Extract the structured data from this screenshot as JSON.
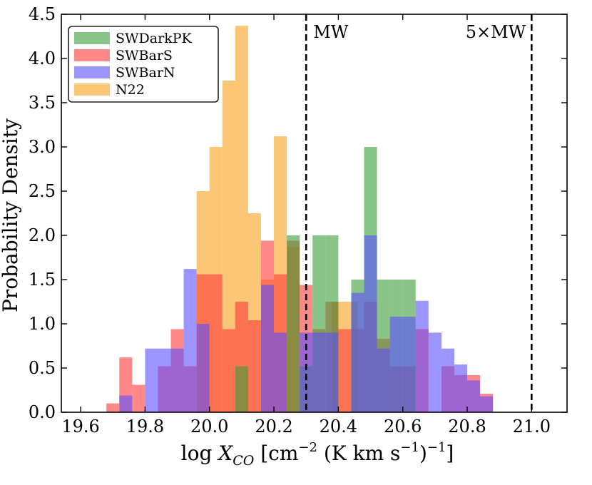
{
  "chart_data": {
    "type": "histogram",
    "title": "",
    "xlabel": "log X_CO [cm^-2 (K km s^-1)^-1]",
    "xlabel_parts": {
      "prefix": "log ",
      "var": "X",
      "sub": "CO",
      "unit_open": " [cm",
      "sup1": "−2",
      "unit_mid": " (K km s",
      "sup2": "−1",
      "unit_close": ")",
      "sup3": "−1",
      "end": "]"
    },
    "ylabel": "Probability Density",
    "xlim": [
      19.54,
      21.11
    ],
    "ylim": [
      0.0,
      4.5
    ],
    "xticks": [
      "19.6",
      "19.8",
      "20.0",
      "20.2",
      "20.4",
      "20.6",
      "20.8",
      "21.0"
    ],
    "yticks": [
      "0.0",
      "0.5",
      "1.0",
      "1.5",
      "2.0",
      "2.5",
      "3.0",
      "3.5",
      "4.0",
      "4.5"
    ],
    "legend_position": "upper-left",
    "vlines": [
      {
        "x": 20.3,
        "label": "MW",
        "style": "dashed",
        "color": "#000000"
      },
      {
        "x": 21.0,
        "label": "5×MW",
        "style": "dashed",
        "color": "#000000"
      }
    ],
    "series": [
      {
        "name": "N22",
        "color": "#f9a21a",
        "opacity": 0.6,
        "bins": [
          {
            "x0": 19.96,
            "x1": 20.0,
            "y": 2.5
          },
          {
            "x0": 20.0,
            "x1": 20.04,
            "y": 3.0
          },
          {
            "x0": 20.04,
            "x1": 20.08,
            "y": 3.75
          },
          {
            "x0": 20.08,
            "x1": 20.12,
            "y": 4.37
          },
          {
            "x0": 20.12,
            "x1": 20.16,
            "y": 2.25
          },
          {
            "x0": 20.16,
            "x1": 20.2,
            "y": 1.5
          },
          {
            "x0": 20.2,
            "x1": 20.24,
            "y": 3.12
          },
          {
            "x0": 20.24,
            "x1": 20.28,
            "y": 1.87
          },
          {
            "x0": 20.38,
            "x1": 20.42,
            "y": 1.25
          },
          {
            "x0": 20.42,
            "x1": 20.46,
            "y": 1.25
          }
        ]
      },
      {
        "name": "SWBarS",
        "color": "#ff3b3b",
        "opacity": 0.6,
        "bins": [
          {
            "x0": 19.68,
            "x1": 19.72,
            "y": 0.1
          },
          {
            "x0": 19.72,
            "x1": 19.76,
            "y": 0.62
          },
          {
            "x0": 19.76,
            "x1": 19.8,
            "y": 0.31
          },
          {
            "x0": 19.84,
            "x1": 19.88,
            "y": 0.52
          },
          {
            "x0": 19.88,
            "x1": 19.92,
            "y": 0.94
          },
          {
            "x0": 19.92,
            "x1": 19.96,
            "y": 0.52
          },
          {
            "x0": 19.96,
            "x1": 20.0,
            "y": 1.56
          },
          {
            "x0": 20.0,
            "x1": 20.04,
            "y": 1.56
          },
          {
            "x0": 20.04,
            "x1": 20.08,
            "y": 0.94
          },
          {
            "x0": 20.08,
            "x1": 20.12,
            "y": 1.25
          },
          {
            "x0": 20.12,
            "x1": 20.16,
            "y": 1.04
          },
          {
            "x0": 20.16,
            "x1": 20.2,
            "y": 1.94
          },
          {
            "x0": 20.2,
            "x1": 20.24,
            "y": 1.56
          },
          {
            "x0": 20.24,
            "x1": 20.28,
            "y": 1.94
          },
          {
            "x0": 20.28,
            "x1": 20.32,
            "y": 1.44
          },
          {
            "x0": 20.32,
            "x1": 20.36,
            "y": 0.94
          },
          {
            "x0": 20.36,
            "x1": 20.4,
            "y": 1.25
          },
          {
            "x0": 20.4,
            "x1": 20.44,
            "y": 0.94
          },
          {
            "x0": 20.44,
            "x1": 20.48,
            "y": 0.94
          },
          {
            "x0": 20.48,
            "x1": 20.52,
            "y": 1.25
          },
          {
            "x0": 20.52,
            "x1": 20.56,
            "y": 0.83
          },
          {
            "x0": 20.56,
            "x1": 20.6,
            "y": 0.52
          },
          {
            "x0": 20.6,
            "x1": 20.64,
            "y": 0.52
          },
          {
            "x0": 20.64,
            "x1": 20.68,
            "y": 0.94
          },
          {
            "x0": 20.72,
            "x1": 20.76,
            "y": 0.52
          },
          {
            "x0": 20.76,
            "x1": 20.8,
            "y": 0.42
          },
          {
            "x0": 20.8,
            "x1": 20.84,
            "y": 0.42
          },
          {
            "x0": 20.84,
            "x1": 20.88,
            "y": 0.21
          }
        ]
      },
      {
        "name": "SWDarkPK",
        "color": "#3a9e3a",
        "opacity": 0.6,
        "bins": [
          {
            "x0": 20.08,
            "x1": 20.12,
            "y": 0.52
          },
          {
            "x0": 20.24,
            "x1": 20.28,
            "y": 2.0
          },
          {
            "x0": 20.28,
            "x1": 20.32,
            "y": 0.52
          },
          {
            "x0": 20.32,
            "x1": 20.36,
            "y": 2.0
          },
          {
            "x0": 20.36,
            "x1": 20.4,
            "y": 2.0
          },
          {
            "x0": 20.44,
            "x1": 20.48,
            "y": 1.5
          },
          {
            "x0": 20.48,
            "x1": 20.52,
            "y": 3.0
          },
          {
            "x0": 20.52,
            "x1": 20.56,
            "y": 1.5
          },
          {
            "x0": 20.56,
            "x1": 20.6,
            "y": 1.5
          },
          {
            "x0": 20.6,
            "x1": 20.64,
            "y": 1.5
          }
        ]
      },
      {
        "name": "SWBarN",
        "color": "#5a4dff",
        "opacity": 0.6,
        "bins": [
          {
            "x0": 19.72,
            "x1": 19.76,
            "y": 0.19
          },
          {
            "x0": 19.8,
            "x1": 19.84,
            "y": 0.72
          },
          {
            "x0": 19.84,
            "x1": 19.88,
            "y": 0.72
          },
          {
            "x0": 19.88,
            "x1": 19.92,
            "y": 0.72
          },
          {
            "x0": 19.92,
            "x1": 19.96,
            "y": 1.62
          },
          {
            "x0": 19.96,
            "x1": 20.0,
            "y": 1.0
          },
          {
            "x0": 20.16,
            "x1": 20.2,
            "y": 1.44
          },
          {
            "x0": 20.2,
            "x1": 20.24,
            "y": 0.9
          },
          {
            "x0": 20.28,
            "x1": 20.32,
            "y": 0.9
          },
          {
            "x0": 20.32,
            "x1": 20.36,
            "y": 0.9
          },
          {
            "x0": 20.36,
            "x1": 20.4,
            "y": 0.9
          },
          {
            "x0": 20.44,
            "x1": 20.48,
            "y": 1.35
          },
          {
            "x0": 20.48,
            "x1": 20.52,
            "y": 2.0
          },
          {
            "x0": 20.52,
            "x1": 20.56,
            "y": 0.72
          },
          {
            "x0": 20.56,
            "x1": 20.6,
            "y": 1.08
          },
          {
            "x0": 20.6,
            "x1": 20.64,
            "y": 1.08
          },
          {
            "x0": 20.64,
            "x1": 20.68,
            "y": 1.26
          },
          {
            "x0": 20.68,
            "x1": 20.72,
            "y": 0.9
          },
          {
            "x0": 20.72,
            "x1": 20.76,
            "y": 0.72
          },
          {
            "x0": 20.76,
            "x1": 20.8,
            "y": 0.54
          },
          {
            "x0": 20.8,
            "x1": 20.84,
            "y": 0.36
          },
          {
            "x0": 20.84,
            "x1": 20.88,
            "y": 0.18
          }
        ]
      }
    ],
    "legend": [
      {
        "label": "SWDarkPK",
        "color": "#3a9e3a"
      },
      {
        "label": "SWBarS",
        "color": "#ff3b3b"
      },
      {
        "label": "SWBarN",
        "color": "#5a4dff"
      },
      {
        "label": "N22",
        "color": "#f9a21a"
      }
    ]
  }
}
